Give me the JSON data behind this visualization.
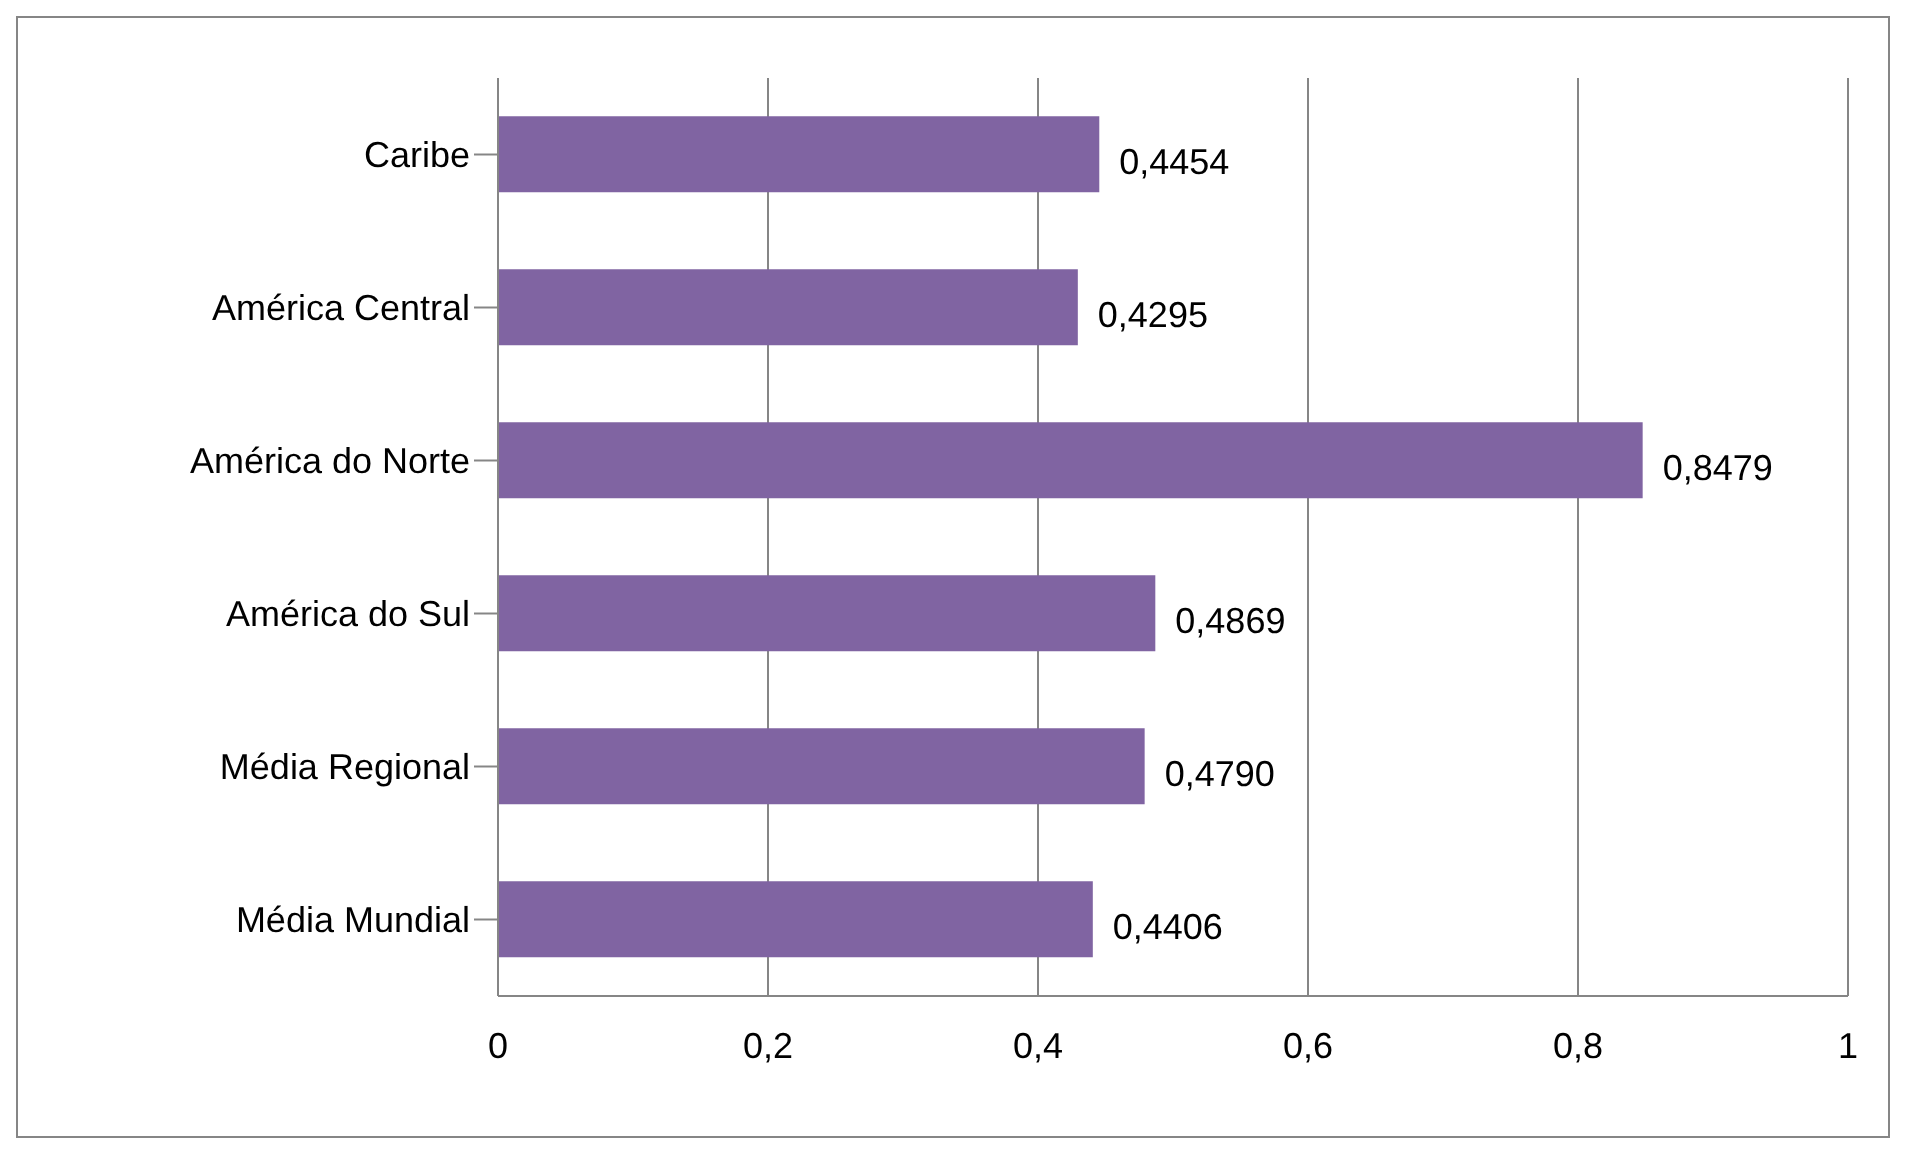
{
  "chart_data": {
    "type": "bar",
    "orientation": "horizontal",
    "categories": [
      "Caribe",
      "América Central",
      "América do Norte",
      "América do Sul",
      "Média Regional",
      "Média Mundial"
    ],
    "values": [
      0.4454,
      0.4295,
      0.8479,
      0.4869,
      0.479,
      0.4406
    ],
    "value_labels": [
      "0,4454",
      "0,4295",
      "0,8479",
      "0,4869",
      "0,4790",
      "0,4406"
    ],
    "color": "#8064a2",
    "xlim": [
      0,
      1
    ],
    "xticks": [
      0,
      {
        "value": 0.2,
        "label": "0,2"
      },
      {
        "value": 0.4,
        "label": "0,4"
      },
      {
        "value": 0.6,
        "label": "0,6"
      },
      {
        "value": 0.8,
        "label": "0,8"
      },
      1
    ],
    "grid": "x"
  }
}
